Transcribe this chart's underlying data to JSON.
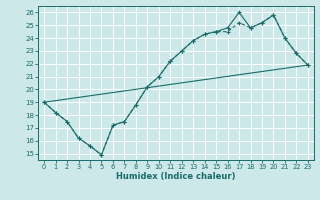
{
  "title": "",
  "xlabel": "Humidex (Indice chaleur)",
  "xlim": [
    -0.5,
    23.5
  ],
  "ylim": [
    14.5,
    26.5
  ],
  "yticks": [
    15,
    16,
    17,
    18,
    19,
    20,
    21,
    22,
    23,
    24,
    25,
    26
  ],
  "xticks": [
    0,
    1,
    2,
    3,
    4,
    5,
    6,
    7,
    8,
    9,
    10,
    11,
    12,
    13,
    14,
    15,
    16,
    17,
    18,
    19,
    20,
    21,
    22,
    23
  ],
  "background_color": "#cce8e8",
  "line_color": "#1a6b6b",
  "grid_color": "#ffffff",
  "series_main": {
    "x": [
      0,
      1,
      2,
      3,
      4,
      5,
      6,
      7,
      8,
      9,
      10,
      11,
      12,
      13,
      14,
      15,
      16,
      17,
      18,
      19,
      20,
      21,
      22,
      23
    ],
    "y": [
      19.0,
      18.2,
      17.5,
      16.2,
      15.6,
      14.9,
      17.2,
      17.5,
      18.8,
      20.2,
      21.0,
      22.2,
      23.0,
      23.8,
      24.3,
      24.5,
      24.8,
      26.0,
      24.8,
      25.2,
      25.8,
      24.0,
      22.8,
      21.9
    ]
  },
  "series_dotted": {
    "x": [
      0,
      1,
      2,
      3,
      4,
      5,
      6,
      7,
      8,
      9,
      10,
      11,
      12,
      13,
      14,
      15,
      16,
      17,
      18,
      19,
      20,
      21,
      22,
      23
    ],
    "y": [
      19.0,
      18.2,
      17.5,
      16.2,
      15.6,
      14.9,
      17.2,
      17.5,
      18.8,
      20.2,
      21.0,
      22.2,
      23.0,
      23.8,
      24.3,
      24.5,
      24.5,
      25.2,
      24.8,
      25.2,
      25.8,
      24.0,
      22.8,
      21.9
    ]
  },
  "series_straight": {
    "x": [
      0,
      23
    ],
    "y": [
      19.0,
      21.9
    ]
  }
}
